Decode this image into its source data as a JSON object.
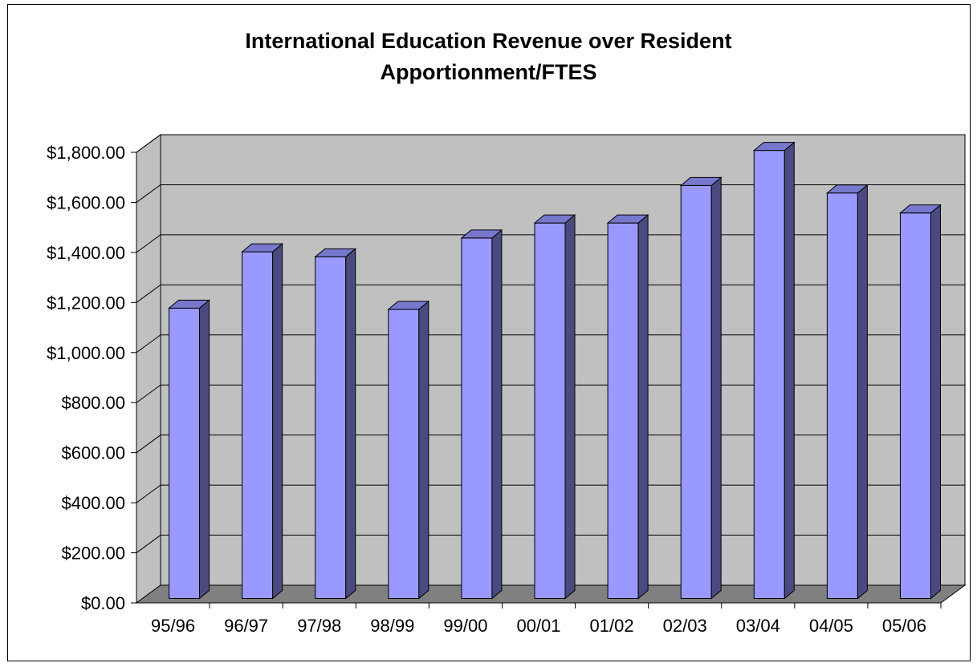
{
  "chart_data": {
    "type": "bar",
    "title": "International Education Revenue over Resident\nApportionment/FTES",
    "xlabel": "",
    "ylabel": "",
    "categories": [
      "95/96",
      "96/97",
      "97/98",
      "98/99",
      "99/00",
      "00/01",
      "01/02",
      "02/03",
      "03/04",
      "04/05",
      "05/06"
    ],
    "values": [
      1160,
      1385,
      1365,
      1155,
      1440,
      1500,
      1500,
      1650,
      1790,
      1620,
      1540
    ],
    "ylim": [
      0,
      1800
    ],
    "ytick_labels": [
      "$0.00",
      "$200.00",
      "$400.00",
      "$600.00",
      "$800.00",
      "$1,000.00",
      "$1,200.00",
      "$1,400.00",
      "$1,600.00",
      "$1,800.00"
    ],
    "grid": true,
    "three_d": true,
    "colors": {
      "bar_front": "#9999FF",
      "bar_side": "#4A4A80",
      "bar_top": "#7777CC",
      "wall": "#C0C0C0",
      "floor": "#808080",
      "border": "#000000"
    }
  }
}
